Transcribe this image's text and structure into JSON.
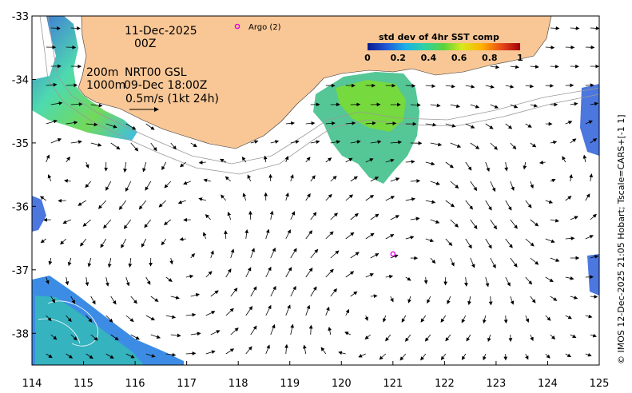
{
  "map": {
    "date_line1": "11-Dec-2025",
    "date_line2": "00Z",
    "contour_label_200": "200m",
    "contour_label_1000": "1000m",
    "product": "NRT00 GSL",
    "analysis_time": "09-Dec 18:00Z",
    "scale_label": "0.5m/s (1kt 24h)",
    "argo_legend": "Argo (2)",
    "credit": "© IMOS 12-Dec-2025 21:05 Hobart; Tscale=CARS+[-1 1]",
    "x_ticks": [
      "114",
      "115",
      "116",
      "117",
      "118",
      "119",
      "120",
      "121",
      "122",
      "123",
      "124",
      "125"
    ],
    "y_ticks": [
      "-33",
      "-34",
      "-35",
      "-36",
      "-37",
      "-38"
    ],
    "x_range": [
      114,
      125
    ],
    "y_range": [
      -38.5,
      -33
    ],
    "colors": {
      "land": "#f9c796",
      "argo": "#e000e0",
      "vectors": "#000000",
      "contours": "#9a9a9a"
    }
  },
  "colorbar": {
    "title": "std dev of 4hr SST comp",
    "ticks": [
      "0",
      "0.2",
      "0.4",
      "0.6",
      "0.8",
      "1"
    ],
    "range": [
      0,
      1
    ],
    "colormap": [
      "#0a1a8c",
      "#1f55d6",
      "#1ab0e8",
      "#2fd3a0",
      "#5ad23c",
      "#d9e81c",
      "#ffb000",
      "#e8471a",
      "#a0000a"
    ]
  },
  "argo_floats": [
    {
      "lon": 121.0,
      "lat": -36.75
    }
  ]
}
